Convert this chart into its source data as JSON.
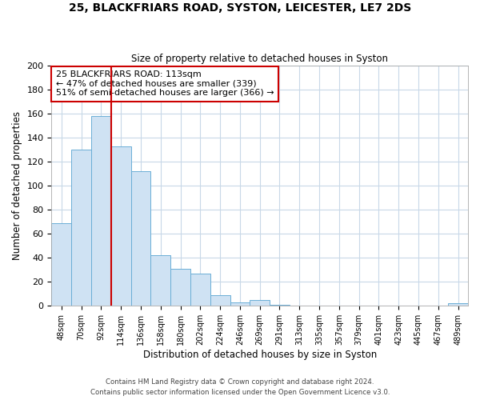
{
  "title1": "25, BLACKFRIARS ROAD, SYSTON, LEICESTER, LE7 2DS",
  "title2": "Size of property relative to detached houses in Syston",
  "xlabel": "Distribution of detached houses by size in Syston",
  "ylabel": "Number of detached properties",
  "bar_labels": [
    "48sqm",
    "70sqm",
    "92sqm",
    "114sqm",
    "136sqm",
    "158sqm",
    "180sqm",
    "202sqm",
    "224sqm",
    "246sqm",
    "269sqm",
    "291sqm",
    "313sqm",
    "335sqm",
    "357sqm",
    "379sqm",
    "401sqm",
    "423sqm",
    "445sqm",
    "467sqm",
    "489sqm"
  ],
  "bar_values": [
    69,
    130,
    158,
    133,
    112,
    42,
    31,
    27,
    9,
    3,
    5,
    1,
    0,
    0,
    0,
    0,
    0,
    0,
    0,
    0,
    2
  ],
  "bar_color": "#cfe2f3",
  "bar_edge_color": "#6baed6",
  "vline_x": 2.5,
  "vline_color": "#cc0000",
  "annotation_title": "25 BLACKFRIARS ROAD: 113sqm",
  "annotation_line1": "← 47% of detached houses are smaller (339)",
  "annotation_line2": "51% of semi-detached houses are larger (366) →",
  "annotation_box_color": "#ffffff",
  "annotation_box_edge": "#cc0000",
  "ylim": [
    0,
    200
  ],
  "yticks": [
    0,
    20,
    40,
    60,
    80,
    100,
    120,
    140,
    160,
    180,
    200
  ],
  "footer1": "Contains HM Land Registry data © Crown copyright and database right 2024.",
  "footer2": "Contains public sector information licensed under the Open Government Licence v3.0.",
  "bg_color": "#ffffff",
  "grid_color": "#c8d8e8"
}
